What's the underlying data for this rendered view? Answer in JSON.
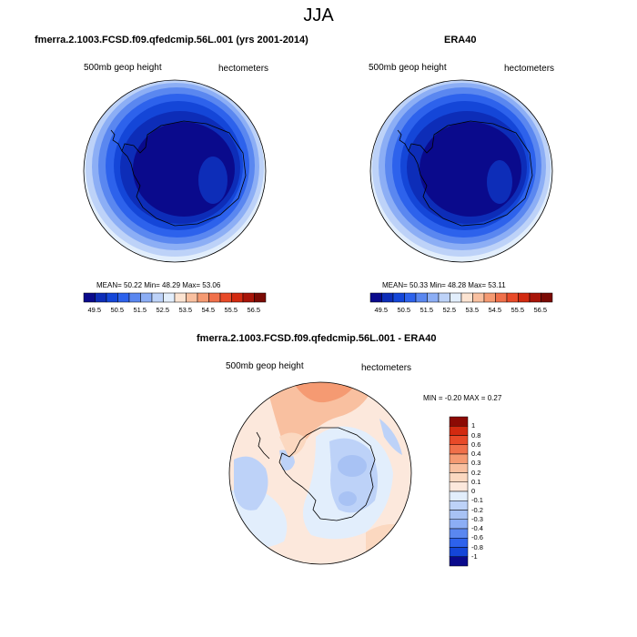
{
  "title": "JJA",
  "panels": {
    "left": {
      "title": "fmerra.2.1003.FCSD.f09.qfedcmip.56L.001 (yrs 2001-2014)",
      "variable": "500mb geop height",
      "units": "hectometers",
      "stats": "MEAN=  50.22  Min=  48.29  Max=  53.06"
    },
    "right": {
      "title": "ERA40",
      "variable": "500mb geop height",
      "units": "hectometers",
      "stats": "MEAN=  50.33  Min=  48.28  Max=  53.11"
    },
    "bottom": {
      "title": "fmerra.2.1003.FCSD.f09.qfedcmip.56L.001 - ERA40",
      "variable": "500mb geop height",
      "units": "hectometers",
      "stats": "MIN =  -0.20 MAX =   0.27"
    }
  },
  "colorbar_top": {
    "labels": [
      "49.5",
      "50.5",
      "51.5",
      "52.5",
      "53.5",
      "54.5",
      "55.5",
      "56.5"
    ],
    "colors": [
      "#0a0a8c",
      "#0d2db8",
      "#1446d8",
      "#2d62ec",
      "#5a87f0",
      "#8caef5",
      "#bdd2f8",
      "#e2eefc",
      "#fce4d2",
      "#f9c0a0",
      "#f59a72",
      "#f0704a",
      "#e84a28",
      "#d22a10",
      "#a81408",
      "#7a0a04"
    ]
  },
  "colorbar_diff": {
    "labels": [
      "1",
      "0.8",
      "0.6",
      "0.4",
      "0.3",
      "0.2",
      "0.1",
      "0",
      "-0.1",
      "-0.2",
      "-0.3",
      "-0.4",
      "-0.6",
      "-0.8",
      "-1"
    ],
    "colors": [
      "#8c0a04",
      "#d22a10",
      "#e84a28",
      "#f0704a",
      "#f59a72",
      "#f9c0a0",
      "#fbd8c0",
      "#fce8dc",
      "#e2eefc",
      "#bdd2f8",
      "#a8c2f4",
      "#8caef5",
      "#5a87f0",
      "#2d62ec",
      "#1446d8",
      "#0a0a8c"
    ]
  }
}
